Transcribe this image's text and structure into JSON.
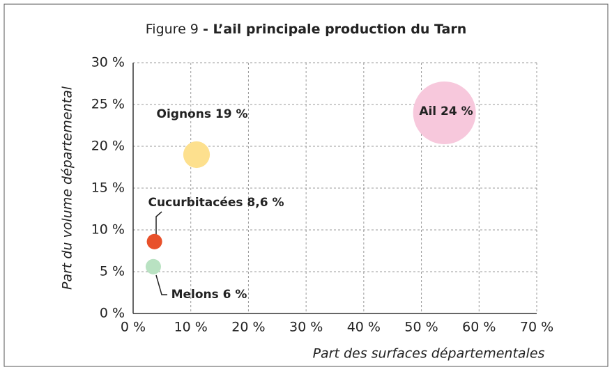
{
  "chart_data": {
    "type": "scatter",
    "title": "Figure 9",
    "subtitle": "- L’ail principale production du Tarn",
    "x_label": "Part des surfaces départementales",
    "y_label": "Part du volume départemental",
    "x": [
      54,
      11,
      3.7,
      3.5
    ],
    "values": [
      24,
      19,
      8.6,
      5.6
    ],
    "sizes": [
      100,
      18,
      6,
      6
    ],
    "colors": [
      "#f7c8dc",
      "#fde08e",
      "#e8502a",
      "#b9e2c2"
    ],
    "value_labels": [
      "Ail 24 %",
      "Oignons 19 %",
      "Cucurbitacées 8,6 %",
      "Melons 6 %"
    ],
    "xlim": [
      0,
      70
    ],
    "xticks": [
      {
        "value": 0,
        "label": "0 %"
      },
      {
        "value": 10,
        "label": "10 %"
      },
      {
        "value": 20,
        "label": "20 %"
      },
      {
        "value": 30,
        "label": "30 %"
      },
      {
        "value": 40,
        "label": "40 %"
      },
      {
        "value": 50,
        "label": "50 %"
      },
      {
        "value": 60,
        "label": "60 %"
      },
      {
        "value": 70,
        "label": "70 %"
      }
    ],
    "ylim": [
      0,
      30
    ],
    "yticks": [
      {
        "value": 0,
        "label": "0 %"
      },
      {
        "value": 5,
        "label": "5 %"
      },
      {
        "value": 10,
        "label": "10 %"
      },
      {
        "value": 15,
        "label": "15 %"
      },
      {
        "value": 20,
        "label": "20 %"
      },
      {
        "value": 25,
        "label": "25 %"
      },
      {
        "value": 30,
        "label": "30 %"
      }
    ],
    "grid": true
  }
}
